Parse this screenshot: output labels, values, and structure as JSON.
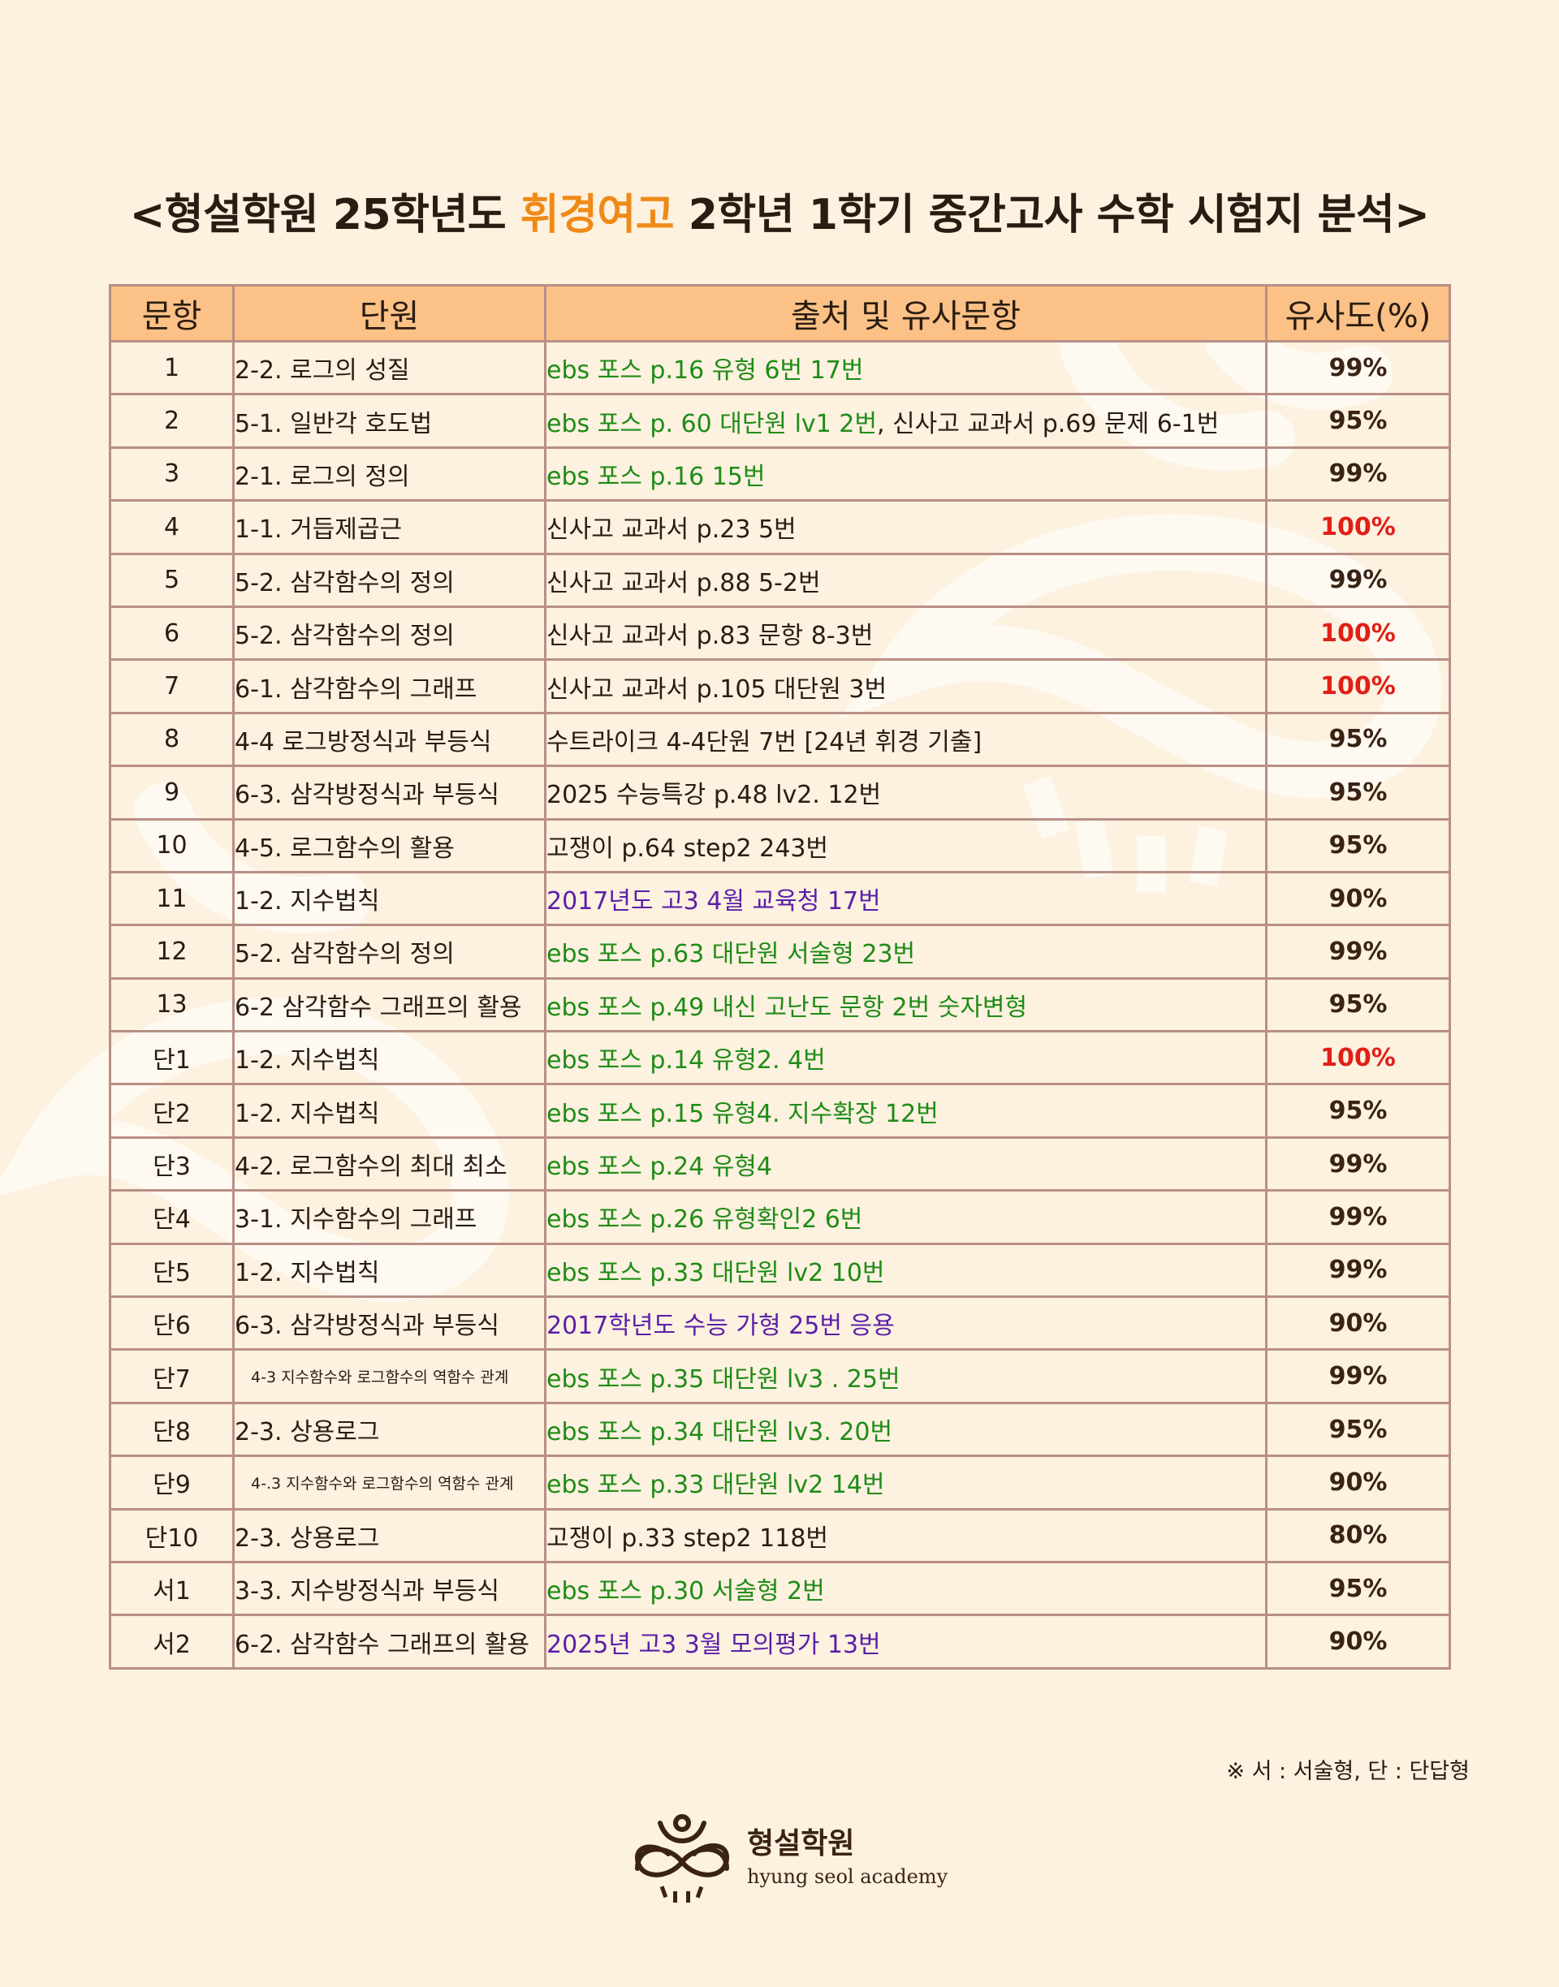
{
  "title": {
    "prefix": "<형설학원 25학년도 ",
    "highlight": "휘경여고",
    "suffix": " 2학년 1학기 중간고사 수학 시험지 분석>",
    "highlight_color": "#ef8a17"
  },
  "table": {
    "headers": [
      "문항",
      "단원",
      "출처 및 유사문항",
      "유사도(%)"
    ],
    "rows": [
      {
        "num": "1",
        "unit": "2-2. 로그의 성질",
        "src": [
          {
            "t": "ebs 포스 p.16 유형 6번 17번",
            "c": "green"
          }
        ],
        "pct": "99%"
      },
      {
        "num": "2",
        "unit": "5-1. 일반각 호도법",
        "src": [
          {
            "t": "ebs 포스 p. 60 대단원 lv1 2번",
            "c": "green"
          },
          {
            "t": ", 신사고 교과서 p.69 문제 6-1번",
            "c": "black"
          }
        ],
        "pct": "95%"
      },
      {
        "num": "3",
        "unit": "2-1. 로그의 정의",
        "src": [
          {
            "t": "ebs 포스 p.16 15번",
            "c": "green"
          }
        ],
        "pct": "99%"
      },
      {
        "num": "4",
        "unit": "1-1. 거듭제곱근",
        "src": [
          {
            "t": "신사고 교과서 p.23 5번",
            "c": "black"
          }
        ],
        "pct": "100%"
      },
      {
        "num": "5",
        "unit": "5-2. 삼각함수의 정의",
        "src": [
          {
            "t": "신사고 교과서 p.88 5-2번",
            "c": "black"
          }
        ],
        "pct": "99%"
      },
      {
        "num": "6",
        "unit": "5-2. 삼각함수의 정의",
        "src": [
          {
            "t": "신사고 교과서 p.83 문항 8-3번",
            "c": "black"
          }
        ],
        "pct": "100%"
      },
      {
        "num": "7",
        "unit": "6-1. 삼각함수의 그래프",
        "src": [
          {
            "t": "신사고 교과서 p.105 대단원 3번",
            "c": "black"
          }
        ],
        "pct": "100%"
      },
      {
        "num": "8",
        "unit": "4-4 로그방정식과 부등식",
        "src": [
          {
            "t": "수트라이크 4-4단원 7번 [24년 휘경 기출]",
            "c": "black"
          }
        ],
        "pct": "95%"
      },
      {
        "num": "9",
        "unit": "6-3. 삼각방정식과 부등식",
        "src": [
          {
            "t": "2025 수능특강 p.48 lv2. 12번",
            "c": "black"
          }
        ],
        "pct": "95%"
      },
      {
        "num": "10",
        "unit": "4-5. 로그함수의 활용",
        "src": [
          {
            "t": "고쟁이 p.64 step2 243번",
            "c": "black"
          }
        ],
        "pct": "95%"
      },
      {
        "num": "11",
        "unit": "1-2. 지수법칙",
        "src": [
          {
            "t": "2017년도 고3 4월 교육청 17번",
            "c": "purple"
          }
        ],
        "pct": "90%"
      },
      {
        "num": "12",
        "unit": "5-2. 삼각함수의 정의",
        "src": [
          {
            "t": "ebs 포스 p.63 대단원 서술형 23번",
            "c": "green"
          }
        ],
        "pct": "99%"
      },
      {
        "num": "13",
        "unit": "6-2 삼각함수 그래프의 활용",
        "src": [
          {
            "t": "ebs 포스 p.49 내신 고난도 문항 2번 숫자변형",
            "c": "green"
          }
        ],
        "pct": "95%"
      },
      {
        "num": "단1",
        "unit": "1-2. 지수법칙",
        "src": [
          {
            "t": "ebs 포스 p.14 유형2. 4번",
            "c": "green"
          }
        ],
        "pct": "100%"
      },
      {
        "num": "단2",
        "unit": "1-2. 지수법칙",
        "src": [
          {
            "t": "ebs 포스 p.15 유형4. 지수확장 12번",
            "c": "green"
          }
        ],
        "pct": "95%"
      },
      {
        "num": "단3",
        "unit": "4-2. 로그함수의 최대 최소",
        "src": [
          {
            "t": "ebs 포스 p.24 유형4",
            "c": "green"
          }
        ],
        "pct": "99%"
      },
      {
        "num": "단4",
        "unit": "3-1. 지수함수의 그래프",
        "src": [
          {
            "t": "ebs 포스 p.26 유형확인2   6번",
            "c": "green"
          }
        ],
        "pct": "99%"
      },
      {
        "num": "단5",
        "unit": "1-2. 지수법칙",
        "src": [
          {
            "t": "ebs 포스 p.33 대단원 lv2 10번",
            "c": "green"
          }
        ],
        "pct": "99%"
      },
      {
        "num": "단6",
        "unit": "6-3. 삼각방정식과 부등식",
        "src": [
          {
            "t": "2017학년도 수능 가형 25번 응용",
            "c": "purple"
          }
        ],
        "pct": "90%"
      },
      {
        "num": "단7",
        "unit": "4-3 지수함수와 로그함수의 역함수 관계",
        "small": true,
        "src": [
          {
            "t": "ebs 포스 p.35 대단원 lv3 . 25번",
            "c": "green"
          }
        ],
        "pct": "99%"
      },
      {
        "num": "단8",
        "unit": "2-3. 상용로그",
        "src": [
          {
            "t": "ebs 포스 p.34 대단원 lv3. 20번",
            "c": "green"
          }
        ],
        "pct": "95%"
      },
      {
        "num": "단9",
        "unit": "4-.3 지수함수와 로그함수의 역함수 관계",
        "small": true,
        "src": [
          {
            "t": "ebs 포스 p.33 대단원 lv2 14번",
            "c": "green"
          }
        ],
        "pct": "90%"
      },
      {
        "num": "단10",
        "unit": "2-3. 상용로그",
        "src": [
          {
            "t": "고쟁이 p.33 step2 118번",
            "c": "black"
          }
        ],
        "pct": "80%"
      },
      {
        "num": "서1",
        "unit": "3-3. 지수방정식과 부등식",
        "src": [
          {
            "t": "ebs 포스 p.30 서술형 2번",
            "c": "green"
          }
        ],
        "pct": "95%"
      },
      {
        "num": "서2",
        "unit": "6-2. 삼각함수 그래프의 활용",
        "src": [
          {
            "t": "2025년 고3 3월 모의평가 13번",
            "c": "purple"
          }
        ],
        "pct": "90%"
      }
    ]
  },
  "colors": {
    "background": "#fdf1e0",
    "header_fill": "#fbc186",
    "border": "#b88f86",
    "source_green": "#1e8c16",
    "source_purple": "#5b1fa8",
    "max_pct_red": "#e01f16"
  },
  "footnote": "※ 서 : 서술형, 단 : 단답형",
  "logo": {
    "name": "형설학원",
    "subtitle": "hyung seol academy",
    "icon": "academy-logo-icon"
  }
}
